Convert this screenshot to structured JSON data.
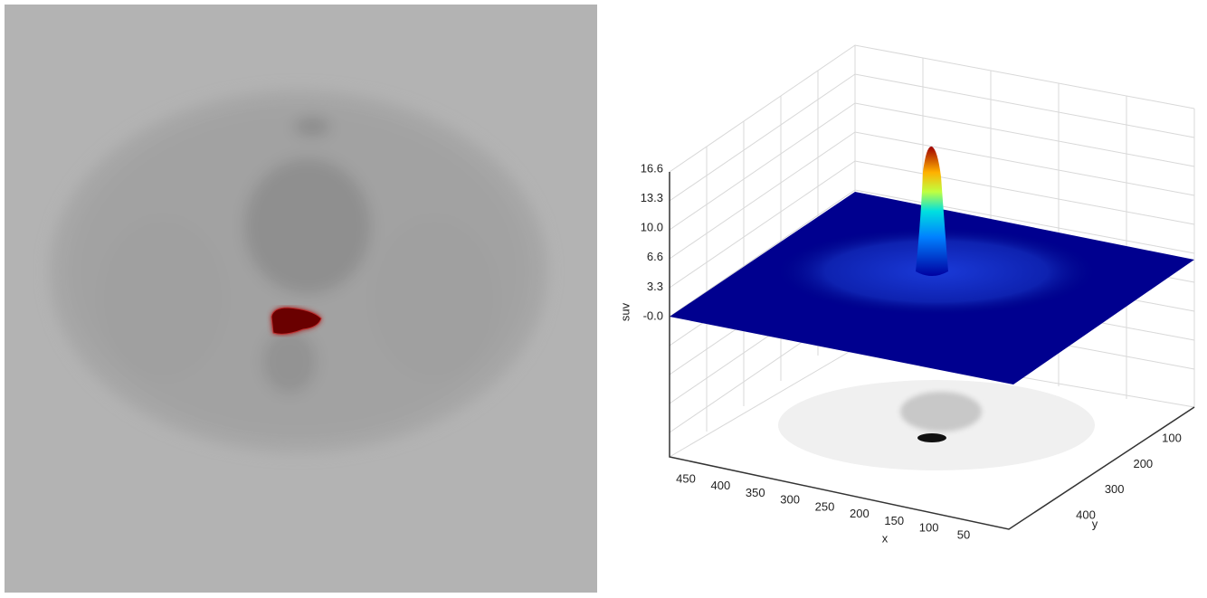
{
  "plot": {
    "z_label": "suv",
    "z_ticks": [
      "16.6",
      "13.3",
      "10.0",
      "6.6",
      "3.3",
      "-0.0"
    ],
    "x_label": "x",
    "x_ticks": [
      "450",
      "400",
      "350",
      "300",
      "250",
      "200",
      "150",
      "100",
      "50"
    ],
    "y_label": "y",
    "y_ticks": [
      "100",
      "200",
      "300",
      "400"
    ]
  }
}
